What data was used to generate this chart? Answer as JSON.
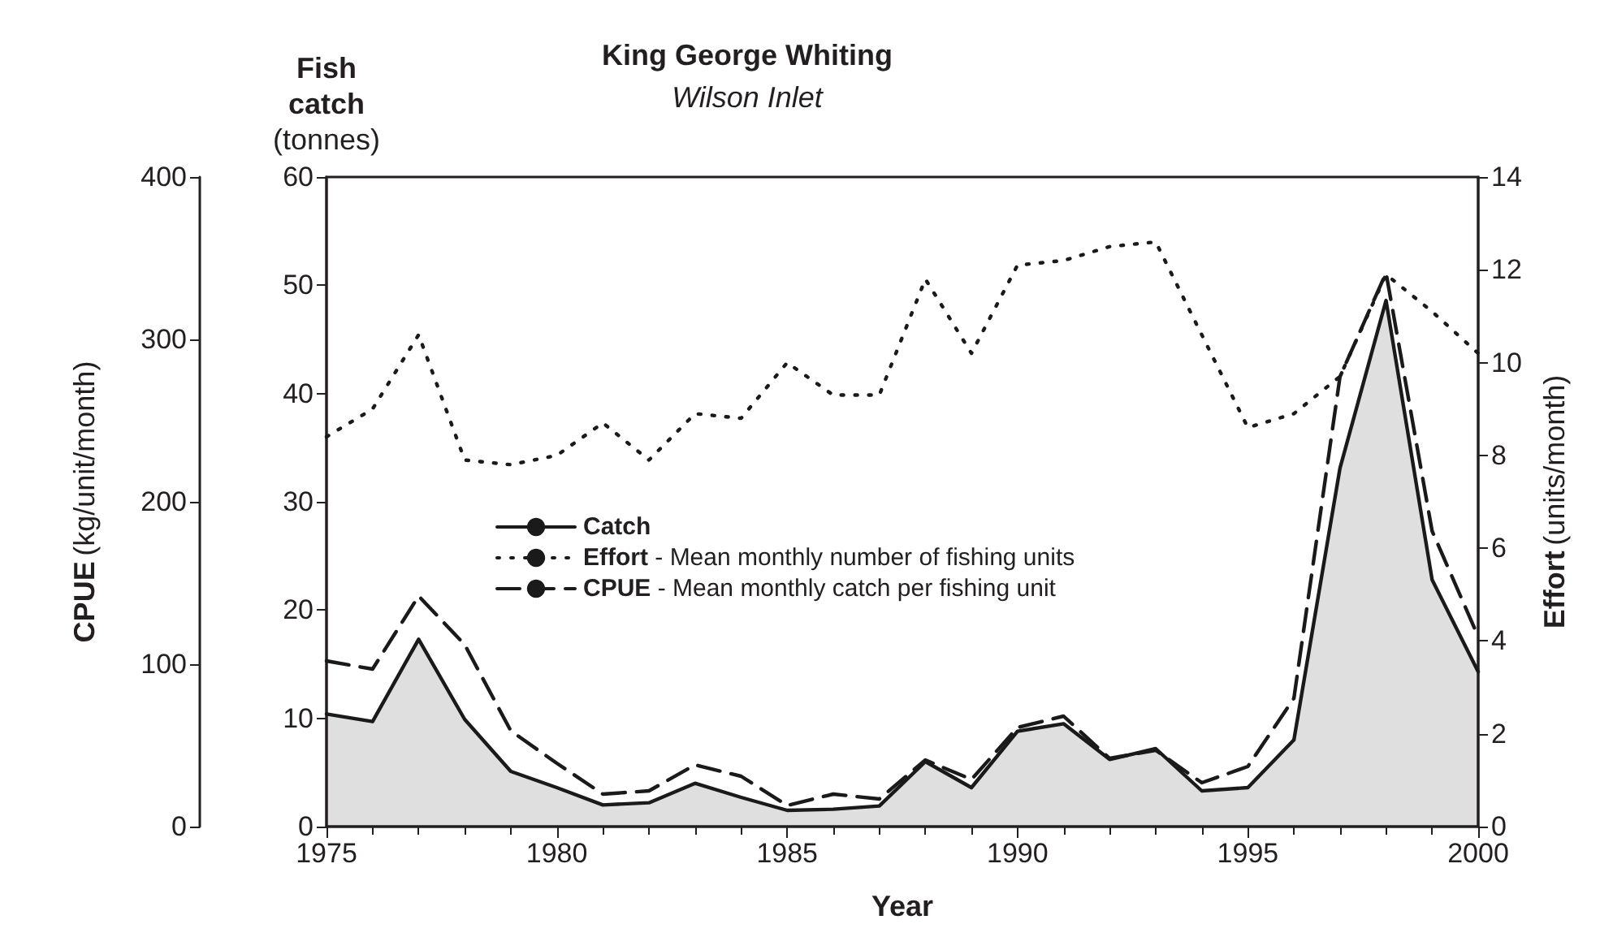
{
  "chart_data": {
    "type": "line",
    "title": "King George Whiting",
    "subtitle": "Wilson Inlet",
    "xlabel": "Year",
    "ylabel": "Fish catch (tonnes)",
    "y2label": "Effort (units/month)",
    "y3label": "CPUE (kg/unit/month)",
    "x": [
      1975,
      1976,
      1977,
      1978,
      1979,
      1980,
      1981,
      1982,
      1983,
      1984,
      1985,
      1986,
      1987,
      1988,
      1989,
      1990,
      1991,
      1992,
      1993,
      1994,
      1995,
      1996,
      1997,
      1998,
      1999,
      2000
    ],
    "series": [
      {
        "name": "Catch",
        "type": "area",
        "color": "#1a1a1a",
        "line_style": "solid",
        "values": [
          10.4,
          9.7,
          17.3,
          9.9,
          5.1,
          3.6,
          2.0,
          2.2,
          4.0,
          2.7,
          1.5,
          1.6,
          1.9,
          6.0,
          3.6,
          8.8,
          9.5,
          6.2,
          7.2,
          3.3,
          3.6,
          8.0,
          33.1,
          48.6,
          22.8,
          14.3
        ]
      },
      {
        "name": "Effort - Mean monthly number of fishing units",
        "type": "line",
        "axis": "y2",
        "color": "#1a1a1a",
        "line_style": "dotted",
        "values": [
          8.4,
          9.0,
          10.6,
          7.9,
          7.8,
          8.0,
          8.7,
          7.9,
          8.9,
          8.8,
          10.0,
          9.3,
          9.3,
          11.8,
          10.2,
          12.1,
          12.2,
          12.5,
          12.6,
          10.6,
          8.6,
          8.9,
          9.7,
          11.9,
          11.1,
          10.2
        ]
      },
      {
        "name": "CPUE - Mean monthly catch per fishing unit",
        "type": "line",
        "axis": "y3",
        "color": "#1a1a1a",
        "line_style": "dashed",
        "values": [
          102,
          97,
          142,
          112,
          59,
          39,
          20,
          22,
          38,
          31,
          13,
          20,
          17,
          41,
          29,
          61,
          68,
          42,
          47,
          27,
          37,
          79,
          277,
          341,
          182,
          117
        ]
      }
    ],
    "xlim": [
      1975,
      2000
    ],
    "xticks": [
      1975,
      1980,
      1985,
      1990,
      1995,
      2000
    ],
    "ylim": [
      0,
      60
    ],
    "yticks": [
      0,
      10,
      20,
      30,
      40,
      50,
      60
    ],
    "y2lim": [
      0,
      14
    ],
    "y2ticks": [
      0,
      2,
      4,
      6,
      8,
      10,
      12,
      14
    ],
    "y3lim": [
      0,
      400
    ],
    "y3ticks": [
      0,
      100,
      200,
      300,
      400
    ],
    "grid": false,
    "legend": "left",
    "marker": "none"
  }
}
